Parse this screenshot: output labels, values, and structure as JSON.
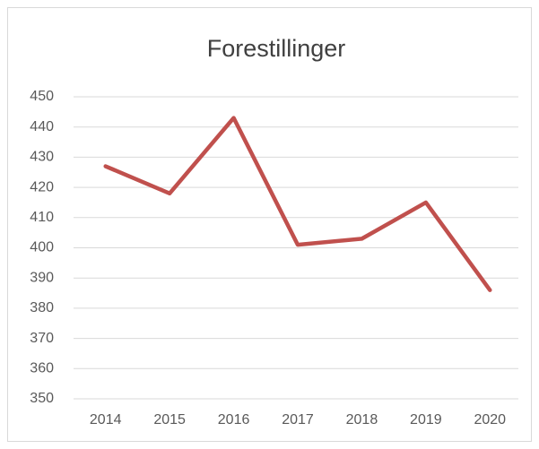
{
  "chart_data": {
    "type": "line",
    "title": "Forestillinger",
    "categories": [
      "2014",
      "2015",
      "2016",
      "2017",
      "2018",
      "2019",
      "2020"
    ],
    "values": [
      427,
      418,
      443,
      401,
      403,
      415,
      386
    ],
    "color": "#c0504d",
    "ylim": [
      350,
      450
    ],
    "yticks": [
      350,
      360,
      370,
      380,
      390,
      400,
      410,
      420,
      430,
      440,
      450
    ],
    "grid": true
  }
}
